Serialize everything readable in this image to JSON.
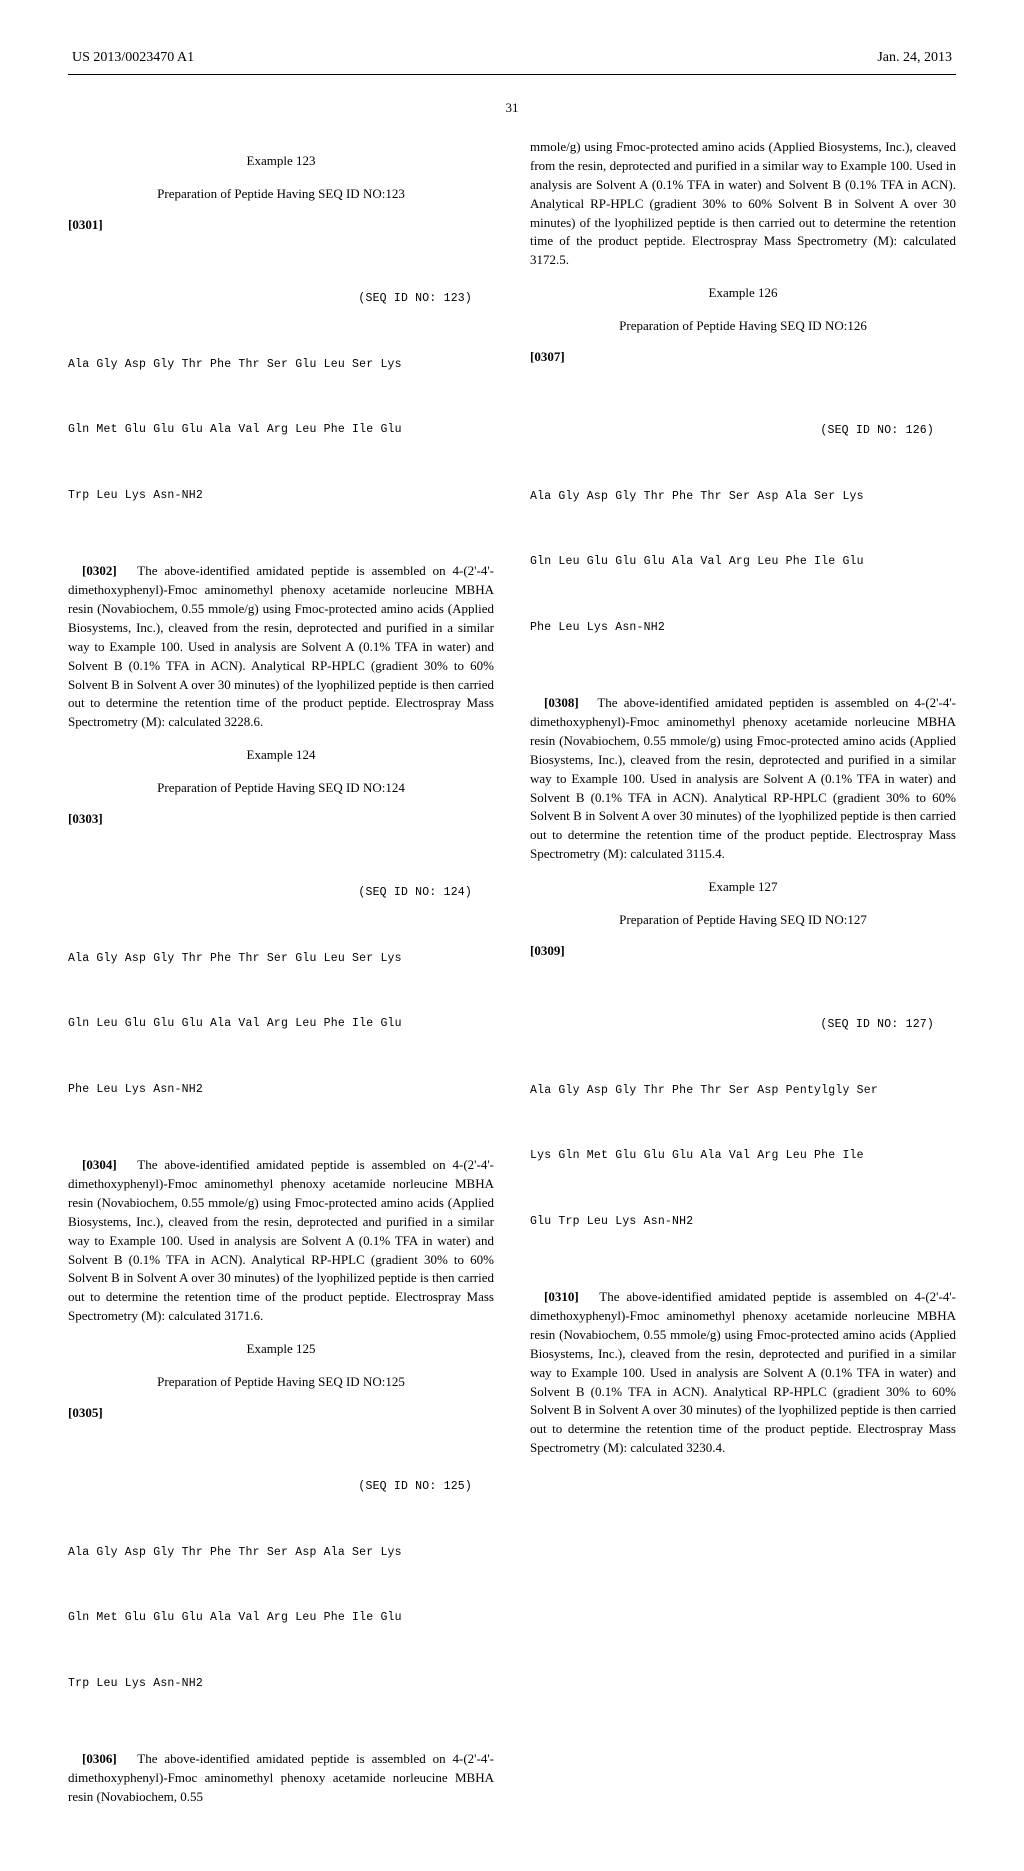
{
  "header": {
    "pub_no": "US 2013/0023470 A1",
    "date": "Jan. 24, 2013"
  },
  "page_number": "31",
  "examples": [
    {
      "title": "Example 123",
      "subtitle": "Preparation of Peptide Having SEQ ID NO:123",
      "para1_num": "[0301]",
      "seq_header": "(SEQ ID NO: 123)",
      "seq_lines": [
        "Ala Gly Asp Gly Thr Phe Thr Ser Glu Leu Ser Lys",
        "Gln Met Glu Glu Glu Ala Val Arg Leu Phe Ile Glu",
        "Trp Leu Lys Asn-NH2"
      ],
      "para2_num": "[0302]",
      "para2_text": "The above-identified amidated peptide is assembled on 4-(2'-4'-dimethoxyphenyl)-Fmoc aminomethyl phenoxy acetamide norleucine MBHA resin (Novabiochem, 0.55 mmole/g) using Fmoc-protected amino acids (Applied Biosystems, Inc.), cleaved from the resin, deprotected and purified in a similar way to Example 100. Used in analysis are Solvent A (0.1% TFA in water) and Solvent B (0.1% TFA in ACN). Analytical RP-HPLC (gradient 30% to 60% Solvent B in Solvent A over 30 minutes) of the lyophilized peptide is then carried out to determine the retention time of the product peptide. Electrospray Mass Spectrometry (M): calculated 3228.6."
    },
    {
      "title": "Example 124",
      "subtitle": "Preparation of Peptide Having SEQ ID NO:124",
      "para1_num": "[0303]",
      "seq_header": "(SEQ ID NO: 124)",
      "seq_lines": [
        "Ala Gly Asp Gly Thr Phe Thr Ser Glu Leu Ser Lys",
        "Gln Leu Glu Glu Glu Ala Val Arg Leu Phe Ile Glu",
        "Phe Leu Lys Asn-NH2"
      ],
      "para2_num": "[0304]",
      "para2_text": "The above-identified amidated peptide is assembled on 4-(2'-4'-dimethoxyphenyl)-Fmoc aminomethyl phenoxy acetamide norleucine MBHA resin (Novabiochem, 0.55 mmole/g) using Fmoc-protected amino acids (Applied Biosystems, Inc.), cleaved from the resin, deprotected and purified in a similar way to Example 100. Used in analysis are Solvent A (0.1% TFA in water) and Solvent B (0.1% TFA in ACN). Analytical RP-HPLC (gradient 30% to 60% Solvent B in Solvent A over 30 minutes) of the lyophilized peptide is then carried out to determine the retention time of the product peptide. Electrospray Mass Spectrometry (M): calculated 3171.6."
    },
    {
      "title": "Example 125",
      "subtitle": "Preparation of Peptide Having SEQ ID NO:125",
      "para1_num": "[0305]",
      "seq_header": "(SEQ ID NO: 125)",
      "seq_lines": [
        "Ala Gly Asp Gly Thr Phe Thr Ser Asp Ala Ser Lys",
        "Gln Met Glu Glu Glu Ala Val Arg Leu Phe Ile Glu",
        "Trp Leu Lys Asn-NH2"
      ],
      "para2_num": "[0306]",
      "para2_text": "The above-identified amidated peptide is assembled on 4-(2'-4'-dimethoxyphenyl)-Fmoc aminomethyl phenoxy acetamide norleucine MBHA resin (Novabiochem, 0.55"
    },
    {
      "continuation": "mmole/g) using Fmoc-protected amino acids (Applied Biosystems, Inc.), cleaved from the resin, deprotected and purified in a similar way to Example 100. Used in analysis are Solvent A (0.1% TFA in water) and Solvent B (0.1% TFA in ACN). Analytical RP-HPLC (gradient 30% to 60% Solvent B in Solvent A over 30 minutes) of the lyophilized peptide is then carried out to determine the retention time of the product peptide. Electrospray Mass Spectrometry (M): calculated 3172.5.",
      "title": "Example 126",
      "subtitle": "Preparation of Peptide Having SEQ ID NO:126",
      "para1_num": "[0307]",
      "seq_header": "(SEQ ID NO: 126)",
      "seq_lines": [
        "Ala Gly Asp Gly Thr Phe Thr Ser Asp Ala Ser Lys",
        "Gln Leu Glu Glu Glu Ala Val Arg Leu Phe Ile Glu",
        "Phe Leu Lys Asn-NH2"
      ],
      "para2_num": "[0308]",
      "para2_text": "The above-identified amidated peptiden is assembled on 4-(2'-4'-dimethoxyphenyl)-Fmoc aminomethyl phenoxy acetamide norleucine MBHA resin (Novabiochem, 0.55 mmole/g) using Fmoc-protected amino acids (Applied Biosystems, Inc.), cleaved from the resin, deprotected and purified in a similar way to Example 100. Used in analysis are Solvent A (0.1% TFA in water) and Solvent B (0.1% TFA in ACN). Analytical RP-HPLC (gradient 30% to 60% Solvent B in Solvent A over 30 minutes) of the lyophilized peptide is then carried out to determine the retention time of the product peptide. Electrospray Mass Spectrometry (M): calculated 3115.4."
    },
    {
      "title": "Example 127",
      "subtitle": "Preparation of Peptide Having SEQ ID NO:127",
      "para1_num": "[0309]",
      "seq_header": "(SEQ ID NO: 127)",
      "seq_lines": [
        "Ala Gly Asp Gly Thr Phe Thr Ser Asp Pentylgly Ser",
        "Lys Gln Met Glu Glu Glu Ala Val Arg Leu Phe Ile",
        "Glu Trp Leu Lys Asn-NH2"
      ],
      "para2_num": "[0310]",
      "para2_text": "The above-identified amidated peptide is assembled on 4-(2'-4'-dimethoxyphenyl)-Fmoc aminomethyl phenoxy acetamide norleucine MBHA resin (Novabiochem, 0.55 mmole/g) using Fmoc-protected amino acids (Applied Biosystems, Inc.), cleaved from the resin, deprotected and purified in a similar way to Example 100. Used in analysis are Solvent A (0.1% TFA in water) and Solvent B (0.1% TFA in ACN). Analytical RP-HPLC (gradient 30% to 60% Solvent B in Solvent A over 30 minutes) of the lyophilized peptide is then carried out to determine the retention time of the product peptide. Electrospray Mass Spectrometry (M): calculated 3230.4."
    }
  ]
}
